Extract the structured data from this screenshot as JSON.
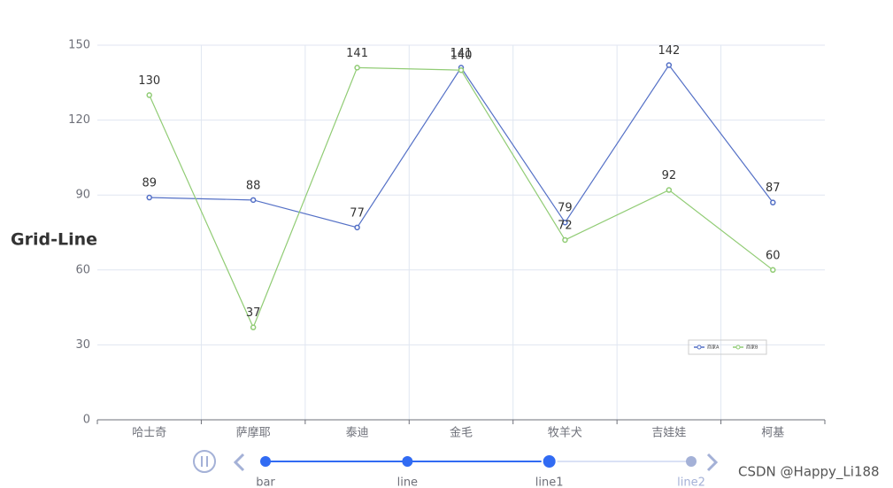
{
  "chart_data": {
    "type": "line",
    "title": "Grid-Line",
    "categories": [
      "哈士奇",
      "萨摩耶",
      "泰迪",
      "金毛",
      "牧羊犬",
      "吉娃娃",
      "柯基"
    ],
    "series": [
      {
        "name": "商家A",
        "color": "#5470c6",
        "values": [
          89,
          88,
          77,
          141,
          79,
          142,
          87
        ]
      },
      {
        "name": "商家B",
        "color": "#91cc75",
        "values": [
          130,
          37,
          141,
          140,
          72,
          92,
          60
        ]
      }
    ],
    "ylim": [
      0,
      150
    ],
    "yticks": [
      0,
      30,
      60,
      90,
      120,
      150
    ],
    "grid": true,
    "legend": "bottom-right"
  },
  "timeline": {
    "items": [
      "bar",
      "line",
      "line1",
      "line2"
    ],
    "current": 2
  },
  "watermark": "CSDN @Happy_Li188"
}
